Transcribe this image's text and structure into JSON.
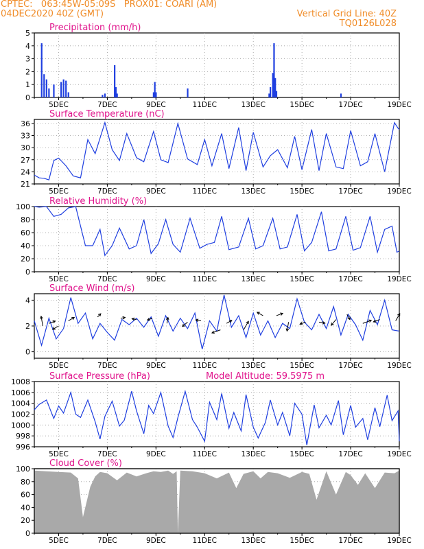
{
  "header": {
    "line1_left": "CPTEC:   063:45W-05:09S   PROX01: COARI (AM)",
    "line2_left": "04DEC2020 40Z (GMT)",
    "line2_right": "Vertical Grid Line: 40Z",
    "line3_right": "TQ0126L028"
  },
  "colors": {
    "header": "#f08c28",
    "title": "#e0148c",
    "line": "#1f3fe0",
    "cloud": "#a9a9a9",
    "grid": "#9a9a9a"
  },
  "chart_data": [
    {
      "id": "precipitation",
      "type": "bar",
      "title": "Precipitation (mm/h)",
      "ylim": [
        0,
        5
      ],
      "yticks": [
        0,
        1,
        2,
        3,
        4,
        5
      ],
      "xticks": [
        "5DEC",
        "7DEC",
        "9DEC",
        "11DEC",
        "13DEC",
        "15DEC",
        "17DEC",
        "19DEC"
      ],
      "x_days": [
        4.3,
        4.4,
        4.5,
        4.6,
        4.8,
        5.1,
        5.2,
        5.3,
        5.4,
        6.8,
        6.9,
        7.3,
        7.35,
        7.4,
        8.9,
        8.95,
        9.0,
        10.3,
        13.65,
        13.7,
        13.8,
        13.85,
        13.9,
        13.95,
        16.6
      ],
      "values": [
        4.2,
        1.8,
        1.4,
        0.7,
        1.0,
        1.2,
        1.4,
        1.3,
        0.4,
        0.2,
        0.3,
        2.5,
        0.8,
        0.3,
        0.4,
        1.2,
        0.4,
        0.7,
        0.3,
        0.8,
        1.9,
        4.2,
        1.5,
        0.5,
        0.3
      ]
    },
    {
      "id": "temperature",
      "type": "line",
      "title": "Surface Temperature (nC)",
      "ylim": [
        21,
        37
      ],
      "yticks": [
        21,
        24,
        27,
        30,
        33,
        36
      ],
      "xticks": [
        "5DEC",
        "7DEC",
        "9DEC",
        "11DEC",
        "13DEC",
        "15DEC",
        "17DEC",
        "19DEC"
      ],
      "x_days": [
        4.0,
        4.2,
        4.4,
        4.6,
        4.8,
        5.0,
        5.3,
        5.6,
        5.9,
        6.2,
        6.5,
        6.9,
        7.2,
        7.5,
        7.8,
        8.2,
        8.5,
        8.9,
        9.2,
        9.5,
        9.9,
        10.3,
        10.7,
        11.0,
        11.3,
        11.7,
        12.0,
        12.4,
        12.7,
        13.0,
        13.4,
        13.7,
        14.0,
        14.4,
        14.7,
        15.0,
        15.4,
        15.7,
        16.0,
        16.4,
        16.7,
        17.0,
        17.4,
        17.7,
        18.0,
        18.4,
        18.8,
        18.95,
        19.0
      ],
      "values": [
        23.2,
        22.5,
        22.4,
        22.0,
        26.8,
        27.4,
        25.5,
        23.0,
        22.5,
        32.0,
        28.5,
        36.2,
        29.5,
        26.8,
        33.5,
        27.5,
        26.5,
        34.0,
        27.0,
        26.3,
        36.0,
        27.2,
        25.8,
        32.0,
        25.5,
        33.5,
        24.8,
        35.0,
        24.3,
        33.8,
        25.2,
        28.0,
        29.5,
        25.0,
        32.8,
        24.5,
        34.5,
        24.3,
        33.5,
        25.2,
        24.8,
        34.2,
        25.5,
        26.5,
        33.5,
        24.0,
        36.2,
        34.8,
        34.5
      ]
    },
    {
      "id": "humidity",
      "type": "line",
      "title": "Relative Humidity (%)",
      "ylim": [
        0,
        100
      ],
      "yticks": [
        0,
        20,
        40,
        60,
        80,
        100
      ],
      "xticks": [
        "5DEC",
        "7DEC",
        "9DEC",
        "11DEC",
        "13DEC",
        "15DEC",
        "17DEC",
        "19DEC"
      ],
      "x_days": [
        4.0,
        4.2,
        4.5,
        4.8,
        5.1,
        5.4,
        5.7,
        6.1,
        6.4,
        6.7,
        6.9,
        7.2,
        7.5,
        7.9,
        8.2,
        8.5,
        8.8,
        9.1,
        9.4,
        9.7,
        10.0,
        10.4,
        10.8,
        11.1,
        11.4,
        11.7,
        12.0,
        12.4,
        12.8,
        13.1,
        13.4,
        13.8,
        14.1,
        14.4,
        14.8,
        15.1,
        15.4,
        15.8,
        16.1,
        16.4,
        16.8,
        17.1,
        17.4,
        17.8,
        18.1,
        18.4,
        18.7,
        18.9,
        19.0
      ],
      "values": [
        100,
        99,
        100,
        85,
        88,
        98,
        100,
        40,
        40,
        65,
        25,
        40,
        67,
        35,
        40,
        80,
        28,
        43,
        80,
        42,
        30,
        82,
        36,
        42,
        45,
        85,
        34,
        38,
        82,
        35,
        40,
        82,
        35,
        38,
        88,
        32,
        45,
        92,
        32,
        35,
        85,
        33,
        37,
        85,
        30,
        65,
        70,
        30,
        32
      ]
    },
    {
      "id": "wind",
      "type": "line",
      "title": "Surface Wind (m/s)",
      "ylim": [
        -0.5,
        4.5
      ],
      "yticks": [
        0,
        2,
        4
      ],
      "xticks": [
        "5DEC",
        "7DEC",
        "9DEC",
        "11DEC",
        "13DEC",
        "15DEC",
        "17DEC",
        "19DEC"
      ],
      "x_days": [
        4.0,
        4.3,
        4.6,
        4.9,
        5.2,
        5.5,
        5.8,
        6.1,
        6.4,
        6.7,
        7.0,
        7.3,
        7.6,
        7.9,
        8.2,
        8.5,
        8.8,
        9.1,
        9.4,
        9.7,
        10.0,
        10.3,
        10.6,
        10.9,
        11.2,
        11.5,
        11.8,
        12.1,
        12.4,
        12.7,
        13.0,
        13.3,
        13.6,
        13.9,
        14.2,
        14.5,
        14.8,
        15.1,
        15.4,
        15.7,
        16.0,
        16.3,
        16.6,
        16.9,
        17.2,
        17.5,
        17.8,
        18.1,
        18.4,
        18.7,
        19.0
      ],
      "values": [
        2.4,
        0.5,
        2.6,
        1.0,
        1.8,
        4.2,
        2.2,
        3.0,
        1.0,
        2.2,
        1.5,
        0.9,
        2.5,
        2.1,
        2.6,
        1.9,
        2.7,
        1.2,
        2.8,
        1.6,
        2.6,
        1.8,
        3.0,
        0.2,
        2.4,
        1.6,
        4.4,
        1.9,
        2.8,
        1.1,
        3.0,
        1.3,
        2.4,
        1.1,
        2.2,
        1.8,
        4.1,
        2.3,
        1.7,
        2.9,
        1.8,
        3.5,
        1.3,
        2.9,
        2.1,
        0.9,
        3.2,
        2.1,
        4.0,
        1.7,
        1.6
      ],
      "arrows": [
        {
          "x": 4.35,
          "y": 2.0,
          "dir_deg": 100,
          "len": 1.3
        },
        {
          "x": 4.6,
          "y": 2.2,
          "dir_deg": 20,
          "len": 0.9
        },
        {
          "x": 5.0,
          "y": 2.0,
          "dir_deg": 210,
          "len": 0.9
        },
        {
          "x": 5.4,
          "y": 2.4,
          "dir_deg": 30,
          "len": 0.9
        },
        {
          "x": 6.6,
          "y": 2.7,
          "dir_deg": 45,
          "len": 0.6
        },
        {
          "x": 7.55,
          "y": 2.6,
          "dir_deg": 10,
          "len": 0.6
        },
        {
          "x": 8.2,
          "y": 2.5,
          "dir_deg": 170,
          "len": 0.6
        },
        {
          "x": 8.85,
          "y": 2.6,
          "dir_deg": 200,
          "len": 0.7
        },
        {
          "x": 9.45,
          "y": 2.2,
          "dir_deg": 80,
          "len": 0.8
        },
        {
          "x": 10.3,
          "y": 2.3,
          "dir_deg": 220,
          "len": 0.9
        },
        {
          "x": 10.85,
          "y": 2.4,
          "dir_deg": 170,
          "len": 0.7
        },
        {
          "x": 11.65,
          "y": 1.7,
          "dir_deg": 200,
          "len": 1.2
        },
        {
          "x": 11.9,
          "y": 2.2,
          "dir_deg": 30,
          "len": 0.8
        },
        {
          "x": 12.6,
          "y": 1.7,
          "dir_deg": 60,
          "len": 1.3
        },
        {
          "x": 13.4,
          "y": 2.8,
          "dir_deg": 150,
          "len": 0.9
        },
        {
          "x": 13.95,
          "y": 2.8,
          "dir_deg": 20,
          "len": 0.9
        },
        {
          "x": 14.45,
          "y": 2.3,
          "dir_deg": 260,
          "len": 1.2
        },
        {
          "x": 15.15,
          "y": 2.3,
          "dir_deg": 200,
          "len": 0.8
        },
        {
          "x": 15.7,
          "y": 2.3,
          "dir_deg": 350,
          "len": 0.8
        },
        {
          "x": 16.4,
          "y": 2.5,
          "dir_deg": 230,
          "len": 1.0
        },
        {
          "x": 16.85,
          "y": 2.9,
          "dir_deg": 300,
          "len": 0.8
        },
        {
          "x": 17.5,
          "y": 2.2,
          "dir_deg": 20,
          "len": 1.2
        },
        {
          "x": 18.2,
          "y": 2.5,
          "dir_deg": 200,
          "len": 0.9
        },
        {
          "x": 18.85,
          "y": 2.4,
          "dir_deg": 60,
          "len": 1.1
        }
      ]
    },
    {
      "id": "pressure",
      "type": "line",
      "title": "Surface Pressure (hPa)",
      "annotation": "Model Altitude: 59.5975 m",
      "ylim": [
        996,
        1008
      ],
      "yticks": [
        996,
        998,
        1000,
        1002,
        1004,
        1006,
        1008
      ],
      "xticks": [
        "5DEC",
        "7DEC",
        "9DEC",
        "11DEC",
        "13DEC",
        "15DEC",
        "17DEC",
        "19DEC"
      ],
      "x_days": [
        4.0,
        4.2,
        4.5,
        4.8,
        5.0,
        5.2,
        5.5,
        5.7,
        5.9,
        6.2,
        6.5,
        6.7,
        6.9,
        7.2,
        7.5,
        7.7,
        8.0,
        8.2,
        8.5,
        8.7,
        8.9,
        9.2,
        9.5,
        9.7,
        9.9,
        10.2,
        10.5,
        10.7,
        11.0,
        11.2,
        11.5,
        11.7,
        12.0,
        12.2,
        12.5,
        12.7,
        13.0,
        13.2,
        13.5,
        13.7,
        14.0,
        14.2,
        14.5,
        14.7,
        15.0,
        15.2,
        15.5,
        15.7,
        16.0,
        16.2,
        16.5,
        16.7,
        17.0,
        17.2,
        17.5,
        17.7,
        18.0,
        18.2,
        18.5,
        18.7,
        18.95,
        19.0
      ],
      "values": [
        1002.8,
        1003.8,
        1004.6,
        1001.2,
        1003.5,
        1002.2,
        1006.0,
        1002.0,
        1001.4,
        1004.6,
        1000.6,
        997.4,
        1001.6,
        1004.4,
        999.8,
        1000.9,
        1006.2,
        1002.6,
        998.4,
        1003.6,
        1002.1,
        1006.0,
        999.8,
        997.7,
        1001.4,
        1006.2,
        1001.0,
        999.6,
        997.0,
        1004.2,
        1001.0,
        1005.8,
        999.4,
        1002.3,
        998.9,
        1005.6,
        999.6,
        997.6,
        1000.5,
        1004.6,
        1000.0,
        1002.3,
        998.0,
        1004.0,
        1002.0,
        996.3,
        1003.7,
        999.5,
        1001.8,
        1000.0,
        1004.5,
        998.2,
        1003.6,
        999.6,
        1001.2,
        997.3,
        1003.2,
        999.7,
        1005.5,
        1000.8,
        1002.6,
        997.0
      ]
    },
    {
      "id": "cloud",
      "type": "area",
      "title": "Cloud Cover (%)",
      "ylim": [
        0,
        100
      ],
      "yticks": [
        0,
        20,
        40,
        60,
        80,
        100
      ],
      "xticks": [
        "5DEC",
        "7DEC",
        "9DEC",
        "11DEC",
        "13DEC",
        "15DEC",
        "17DEC",
        "19DEC"
      ],
      "x_days": [
        4.0,
        4.5,
        5.0,
        5.5,
        5.8,
        6.0,
        6.3,
        6.5,
        6.7,
        7.0,
        7.4,
        7.8,
        8.2,
        8.6,
        8.9,
        9.2,
        9.5,
        9.7,
        9.85,
        9.9,
        10.0,
        10.5,
        11.0,
        11.5,
        12.0,
        12.3,
        12.6,
        13.0,
        13.3,
        13.6,
        14.0,
        14.5,
        15.0,
        15.3,
        15.6,
        16.0,
        16.4,
        16.8,
        17.0,
        17.3,
        17.6,
        18.0,
        18.4,
        18.8,
        19.0
      ],
      "values": [
        97,
        96,
        95,
        94,
        85,
        25,
        72,
        88,
        95,
        93,
        82,
        94,
        88,
        93,
        96,
        95,
        97,
        92,
        96,
        0,
        97,
        96,
        93,
        85,
        94,
        70,
        92,
        96,
        85,
        95,
        93,
        86,
        95,
        92,
        52,
        96,
        60,
        95,
        90,
        75,
        93,
        70,
        94,
        93,
        97
      ]
    }
  ]
}
